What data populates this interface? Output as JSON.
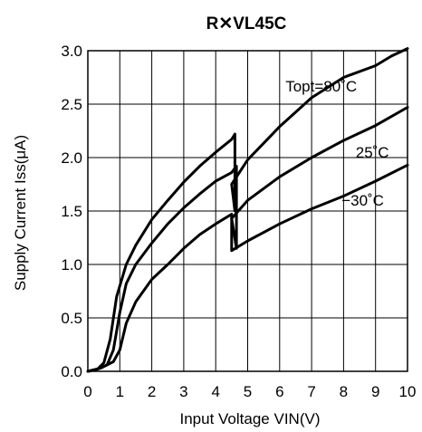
{
  "chart_data": {
    "type": "line",
    "title": "R✕VL45C",
    "xlabel": "Input Voltage VIN(V)",
    "ylabel": "Supply Current Iss(μA)",
    "xlim": [
      0,
      10
    ],
    "ylim": [
      0,
      3.0
    ],
    "x_ticks": [
      "0",
      "1",
      "2",
      "3",
      "4",
      "5",
      "6",
      "7",
      "8",
      "9",
      "10"
    ],
    "y_ticks": [
      "0.0",
      "0.5",
      "1.0",
      "1.5",
      "2.0",
      "2.5",
      "3.0"
    ],
    "grid": true,
    "series": [
      {
        "name": "Topt=80˚C",
        "points": [
          [
            0,
            0
          ],
          [
            0.3,
            0.02
          ],
          [
            0.5,
            0.08
          ],
          [
            0.7,
            0.3
          ],
          [
            0.9,
            0.7
          ],
          [
            1.2,
            1.0
          ],
          [
            1.5,
            1.18
          ],
          [
            2,
            1.42
          ],
          [
            2.5,
            1.6
          ],
          [
            3,
            1.77
          ],
          [
            3.5,
            1.92
          ],
          [
            4,
            2.05
          ],
          [
            4.5,
            2.17
          ],
          [
            4.6,
            2.22
          ],
          [
            4.6,
            1.5
          ],
          [
            4.5,
            1.75
          ],
          [
            5,
            1.98
          ],
          [
            6,
            2.29
          ],
          [
            7,
            2.56
          ],
          [
            8,
            2.75
          ],
          [
            9,
            2.86
          ],
          [
            9.5,
            2.95
          ],
          [
            10,
            3.02
          ]
        ]
      },
      {
        "name": "25˚C",
        "points": [
          [
            0,
            0
          ],
          [
            0.3,
            0.02
          ],
          [
            0.6,
            0.06
          ],
          [
            0.8,
            0.2
          ],
          [
            1.0,
            0.55
          ],
          [
            1.2,
            0.82
          ],
          [
            1.5,
            1.0
          ],
          [
            2,
            1.2
          ],
          [
            2.5,
            1.38
          ],
          [
            3,
            1.53
          ],
          [
            3.5,
            1.66
          ],
          [
            4,
            1.78
          ],
          [
            4.5,
            1.86
          ],
          [
            4.65,
            1.92
          ],
          [
            4.65,
            1.15
          ],
          [
            4.5,
            1.43
          ],
          [
            5,
            1.6
          ],
          [
            6,
            1.82
          ],
          [
            7,
            2.0
          ],
          [
            8,
            2.16
          ],
          [
            9,
            2.3
          ],
          [
            10,
            2.47
          ]
        ]
      },
      {
        "name": "−30˚C",
        "points": [
          [
            0,
            0
          ],
          [
            0.4,
            0.03
          ],
          [
            0.8,
            0.09
          ],
          [
            1.0,
            0.2
          ],
          [
            1.2,
            0.45
          ],
          [
            1.5,
            0.65
          ],
          [
            2,
            0.86
          ],
          [
            2.5,
            1.0
          ],
          [
            3,
            1.15
          ],
          [
            3.5,
            1.28
          ],
          [
            4,
            1.38
          ],
          [
            4.5,
            1.47
          ],
          [
            4.5,
            1.13
          ],
          [
            5,
            1.22
          ],
          [
            6,
            1.38
          ],
          [
            7,
            1.52
          ],
          [
            8,
            1.64
          ],
          [
            9,
            1.78
          ],
          [
            10,
            1.93
          ]
        ]
      }
    ],
    "annotations": [
      {
        "text": "Topt=80˚C",
        "x": 7.3,
        "y": 2.62
      },
      {
        "text": "25˚C",
        "x": 8.9,
        "y": 2.0
      },
      {
        "text": "−30˚C",
        "x": 8.6,
        "y": 1.55
      }
    ]
  }
}
